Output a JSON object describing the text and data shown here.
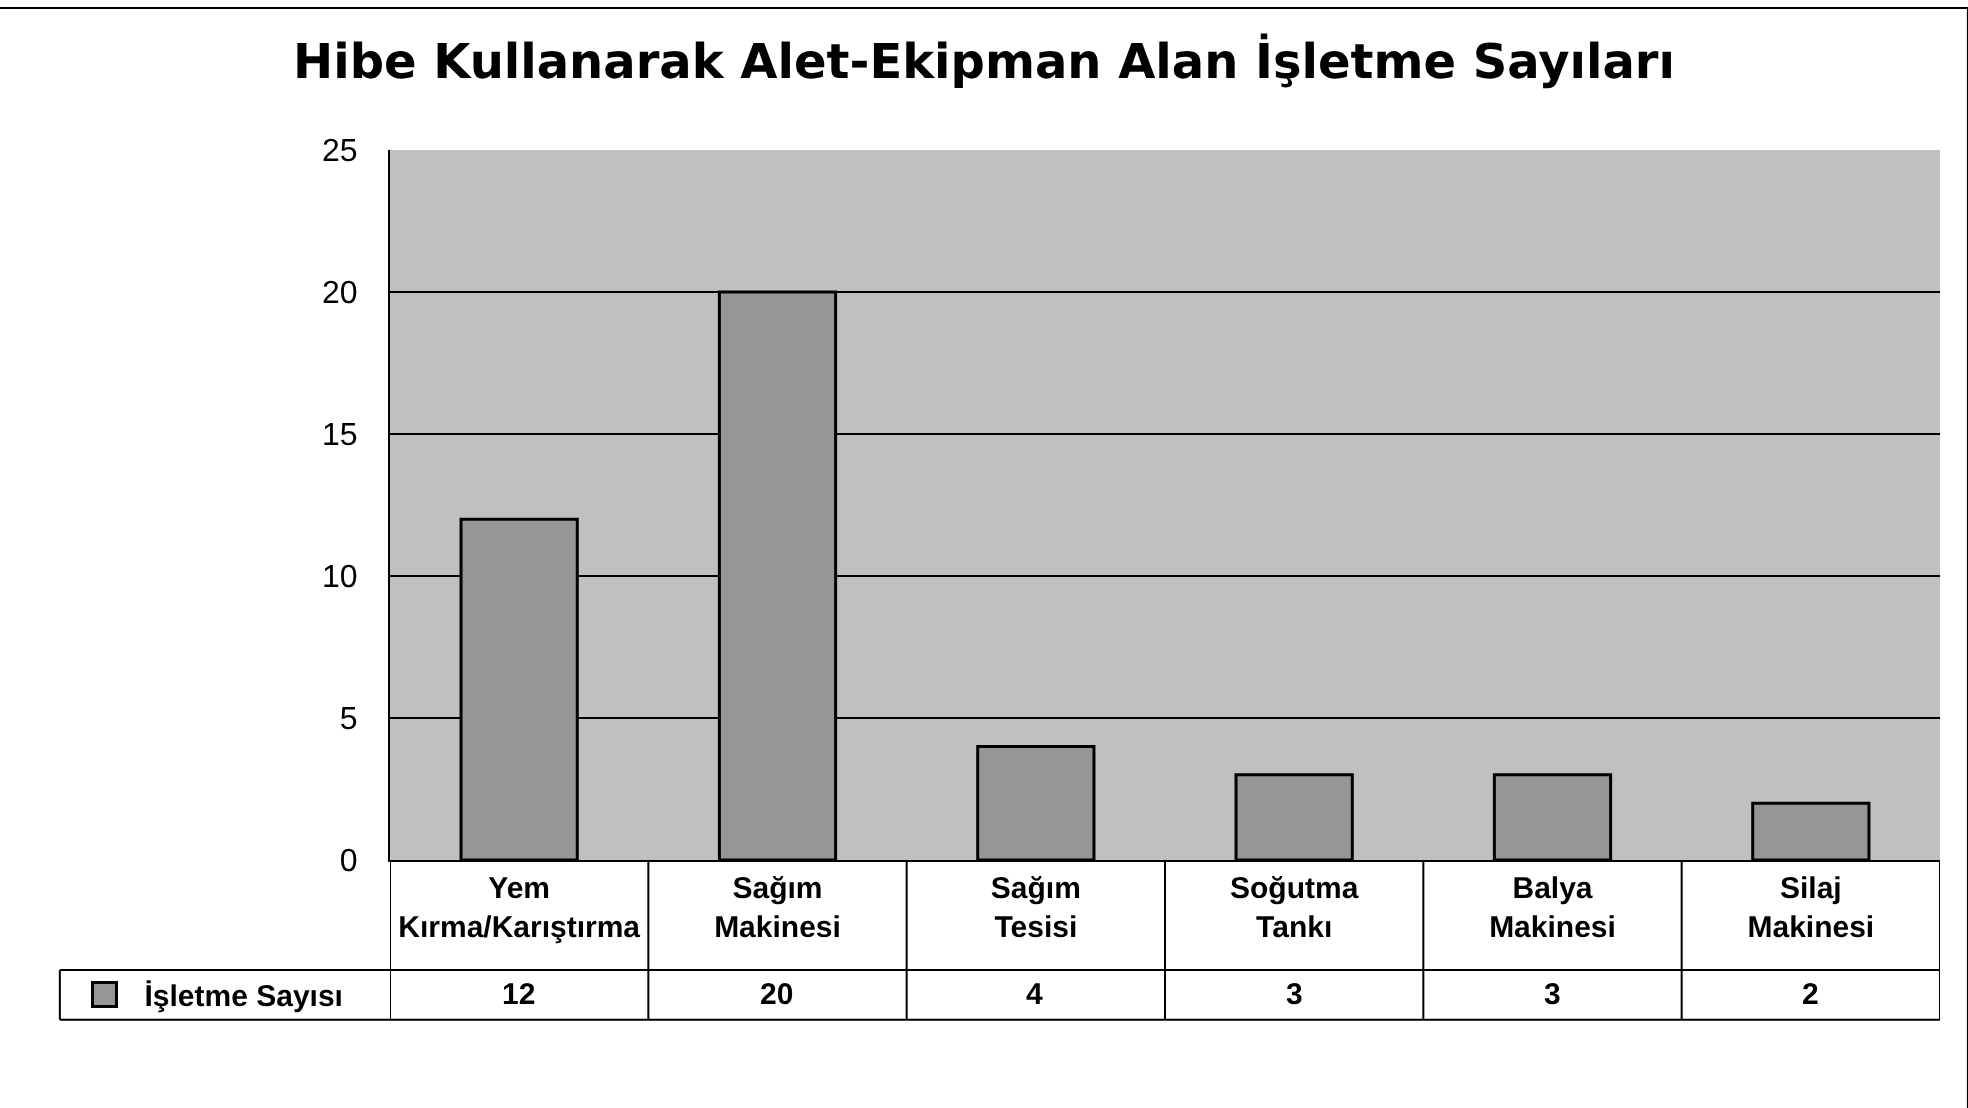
{
  "chart_data": {
    "type": "bar",
    "title": "Hibe Kullanarak Alet-Ekipman Alan İşletme Sayıları",
    "categories": [
      "Yem Kırma/Karıştırma",
      "Sağım Makinesi",
      "Sağım Tesisi",
      "Soğutma Tankı",
      "Balya Makinesi",
      "Silaj Makinesi"
    ],
    "series": [
      {
        "name": "İşletme Sayısı",
        "color": "#969696",
        "values": [
          12,
          20,
          4,
          3,
          3,
          2
        ]
      }
    ],
    "ylim": [
      0,
      25
    ],
    "yticks": [
      0,
      5,
      10,
      15,
      20,
      25
    ],
    "grid": "y",
    "legend": "bottom left",
    "data_labels": true
  }
}
